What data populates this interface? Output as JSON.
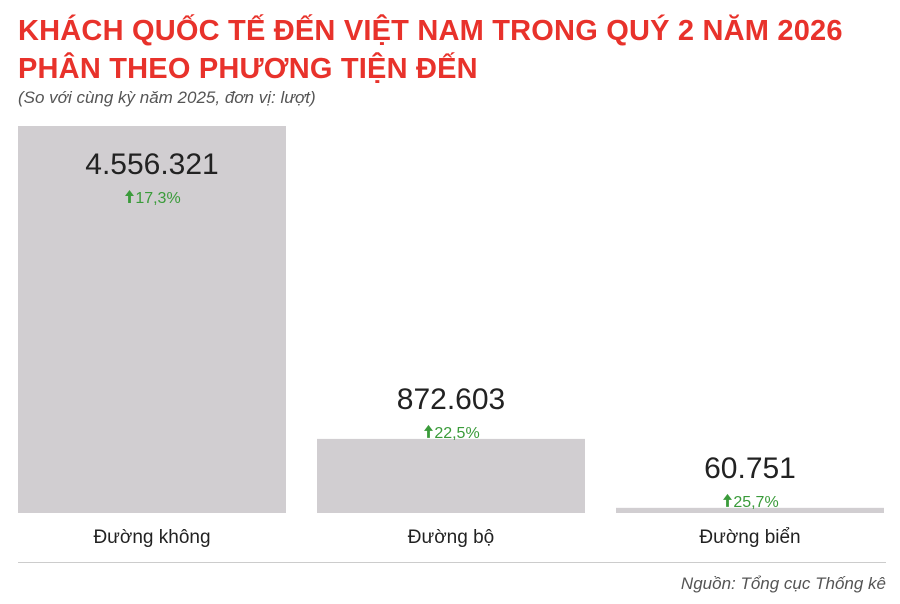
{
  "header": {
    "title_line1": "KHÁCH QUỐC TẾ ĐẾN VIỆT NAM TRONG QUÝ 2 NĂM 2026",
    "title_line2": "PHÂN THEO PHƯƠNG TIỆN ĐẾN",
    "subtitle": "(So với cùng kỳ năm 2025, đơn vị: lượt)"
  },
  "chart_data": {
    "type": "bar",
    "categories": [
      "Đường không",
      "Đường bộ",
      "Đường biển"
    ],
    "values": [
      4556321,
      872603,
      60751
    ],
    "value_labels": [
      "4.556.321",
      "872.603",
      "60.751"
    ],
    "change_labels": [
      "17,3%",
      "22,5%",
      "25,7%"
    ],
    "ylim": [
      0,
      4556321
    ],
    "grid": false,
    "legend": "none"
  },
  "colors": {
    "title": "#e8322b",
    "bar": "#d1ced1",
    "value_text": "#222222",
    "change_up": "#3a9b3a",
    "axis": "#cccccc"
  },
  "footer": {
    "source": "Nguồn: Tổng cục Thống kê"
  }
}
